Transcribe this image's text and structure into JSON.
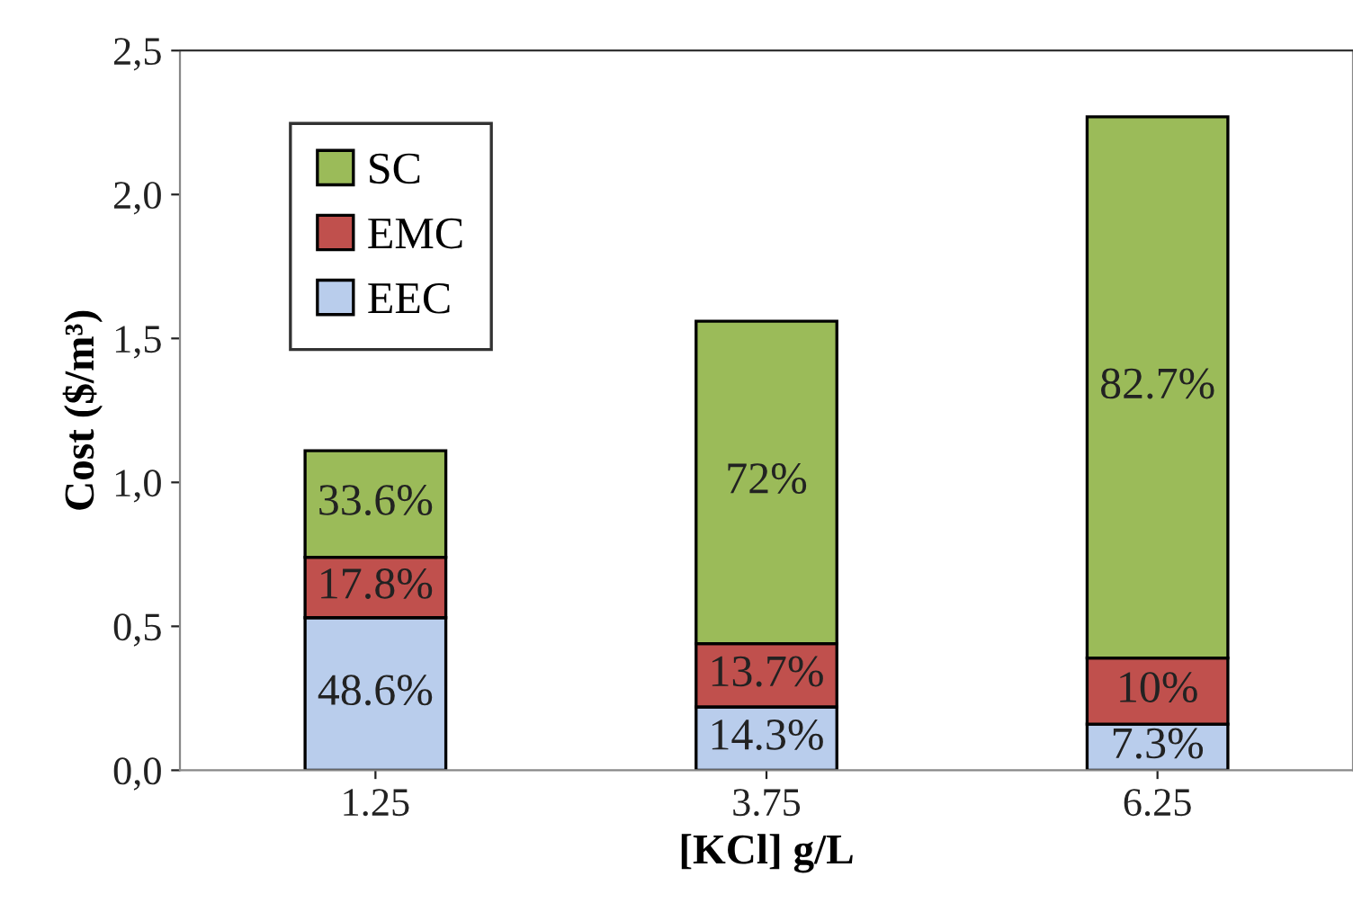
{
  "chart_data": {
    "type": "bar",
    "stacked": true,
    "xlabel": "[KCl] g/L",
    "ylabel": "Cost ($/m³)",
    "categories": [
      "1.25",
      "3.75",
      "6.25"
    ],
    "series": [
      {
        "name": "EEC",
        "color": "#b9cdec",
        "values": [
          0.53,
          0.22,
          0.16
        ]
      },
      {
        "name": "EMC",
        "color": "#c0504d",
        "values": [
          0.21,
          0.22,
          0.23
        ]
      },
      {
        "name": "SC",
        "color": "#9bbb59",
        "values": [
          0.37,
          1.12,
          1.88
        ]
      }
    ],
    "annotations": [
      "48.6%",
      "17.8%",
      "33.6%",
      "14.3%",
      "13.7%",
      "72%",
      "7.3%",
      "10%",
      "82.7%"
    ],
    "ylim": [
      0,
      2.5
    ],
    "yticks": [
      {
        "value": 0,
        "label": "0,0"
      },
      {
        "value": 0.5,
        "label": "0,5"
      },
      {
        "value": 1.0,
        "label": "1,0"
      },
      {
        "value": 1.5,
        "label": "1,5"
      },
      {
        "value": 2.0,
        "label": "2,0"
      },
      {
        "value": 2.5,
        "label": "2,5"
      }
    ],
    "grid": false,
    "legend": "top left"
  }
}
